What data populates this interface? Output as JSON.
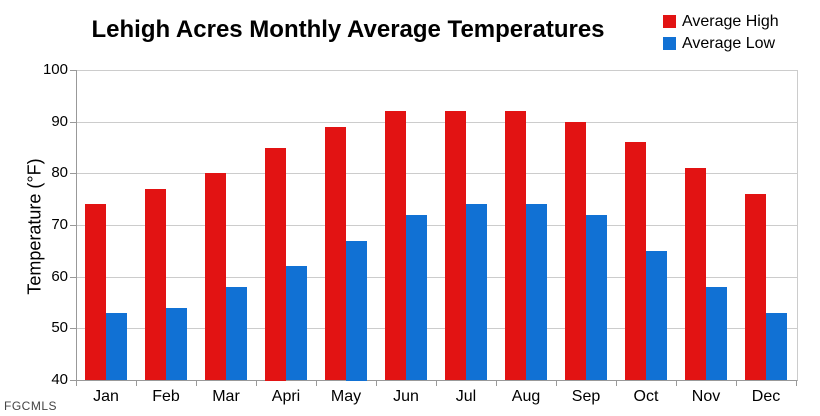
{
  "watermark": "FGCMLS",
  "colors": {
    "average_high": "#e21313",
    "average_low": "#1171d4",
    "gridline": "#cccccc",
    "axis": "#999999",
    "title_text": "#000000",
    "watermark_text": "#444444",
    "background": "#ffffff"
  },
  "chart_data": {
    "type": "bar",
    "title": "Lehigh Acres Monthly Average Temperatures",
    "xlabel": "",
    "ylabel": "Temperature (°F)",
    "categories": [
      "Jan",
      "Feb",
      "Mar",
      "Apri",
      "May",
      "Jun",
      "Jul",
      "Aug",
      "Sep",
      "Oct",
      "Nov",
      "Dec"
    ],
    "series": [
      {
        "name": "Average High",
        "color": "#e21313",
        "values": [
          74,
          77,
          80,
          85,
          89,
          92,
          92,
          92,
          90,
          86,
          81,
          76
        ]
      },
      {
        "name": "Average Low",
        "color": "#1171d4",
        "values": [
          53,
          54,
          58,
          62,
          67,
          72,
          74,
          74,
          72,
          65,
          58,
          53
        ]
      }
    ],
    "ylim": [
      40,
      100
    ],
    "ytick_interval": 10,
    "yticks": [
      40,
      50,
      60,
      70,
      80,
      90,
      100
    ],
    "grid": true,
    "legend_position": "top-right"
  }
}
